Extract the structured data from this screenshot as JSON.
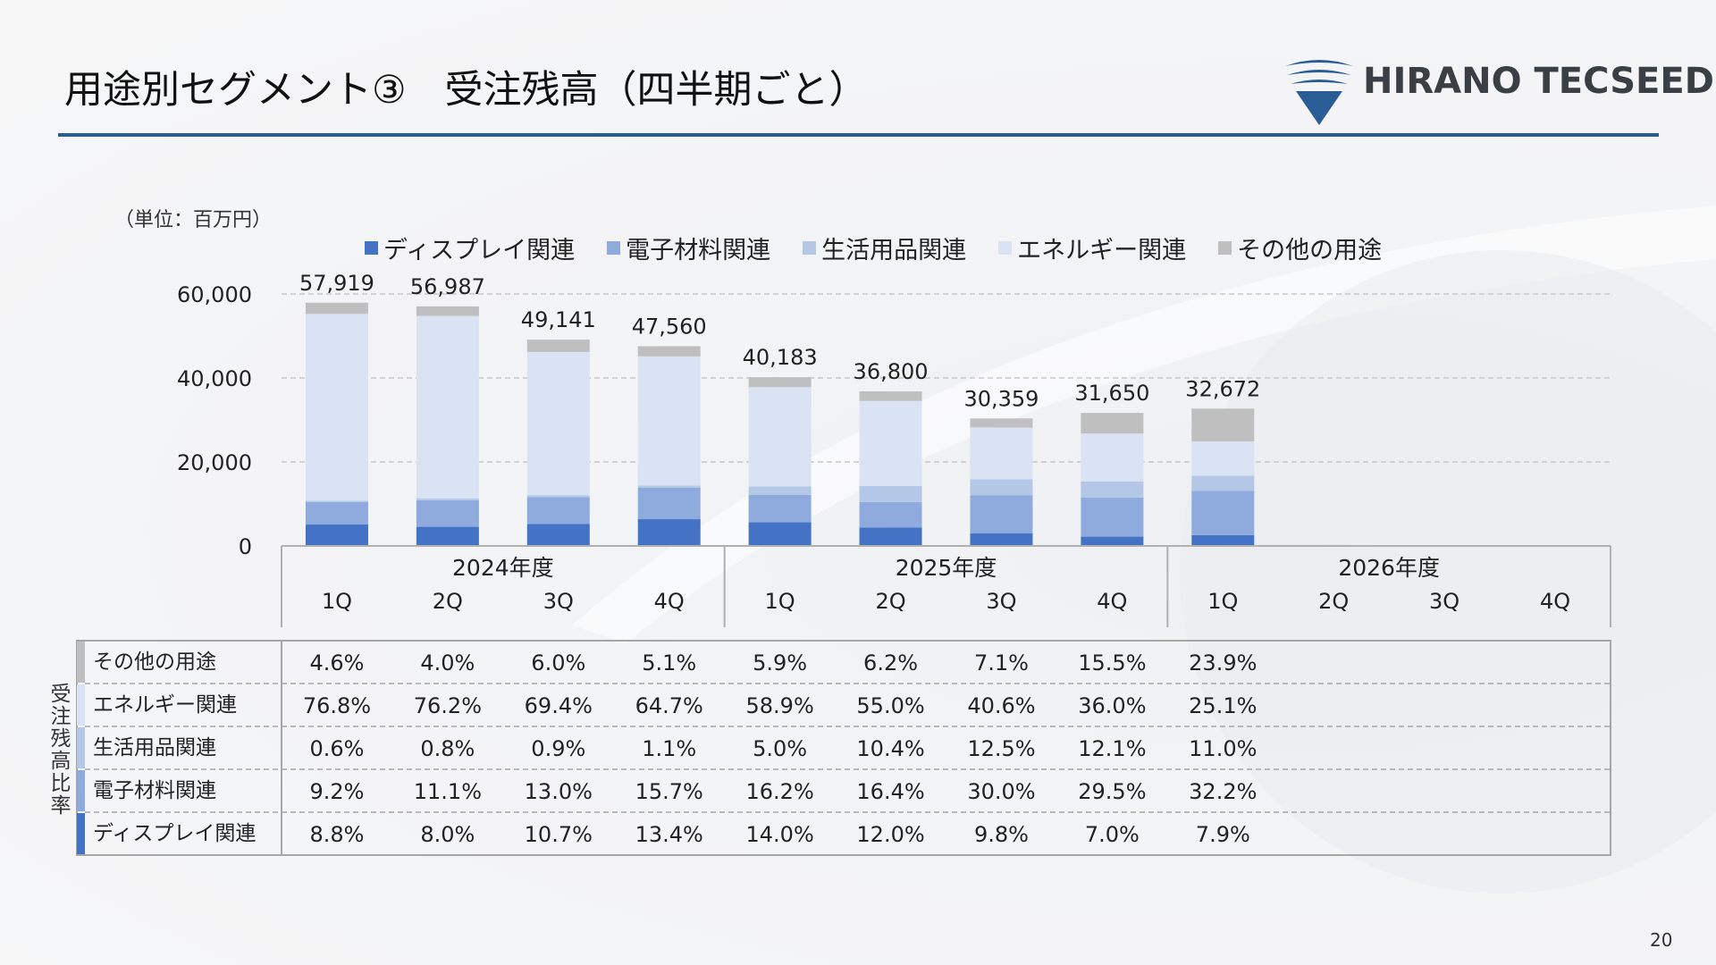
{
  "header": {
    "title": "用途別セグメント③　受注残高（四半期ごと）",
    "brand": "HIRANO TECSEED",
    "page_number": "20"
  },
  "colors": {
    "display": "#4472c4",
    "electronic": "#8faadc",
    "living": "#b4c7e7",
    "energy": "#dae3f3",
    "other": "#bfbfbf",
    "accent": "#2a5c96"
  },
  "unit_label": "（単位：百万円）",
  "table_side_label": "受注残高比率",
  "chart_data": {
    "type": "bar",
    "stacked": true,
    "ylim": [
      0,
      60000
    ],
    "yticks": [
      "0",
      "20,000",
      "40,000",
      "60,000"
    ],
    "ytick_values": [
      0,
      20000,
      40000,
      60000
    ],
    "grid": true,
    "legend_position": "top",
    "fiscal_years": [
      {
        "label": "2024年度",
        "quarters": [
          "1Q",
          "2Q",
          "3Q",
          "4Q"
        ]
      },
      {
        "label": "2025年度",
        "quarters": [
          "1Q",
          "2Q",
          "3Q",
          "4Q"
        ]
      },
      {
        "label": "2026年度",
        "quarters": [
          "1Q",
          "2Q",
          "3Q",
          "4Q"
        ]
      }
    ],
    "totals": [
      57919,
      56987,
      49141,
      47560,
      40183,
      36800,
      30359,
      31650,
      32672,
      null,
      null,
      null
    ],
    "total_labels": [
      "57,919",
      "56,987",
      "49,141",
      "47,560",
      "40,183",
      "36,800",
      "30,359",
      "31,650",
      "32,672",
      "",
      "",
      ""
    ],
    "series": [
      {
        "name": "ディスプレイ関連",
        "color_key": "display",
        "values": [
          5097,
          4559,
          5258,
          6373,
          5626,
          4416,
          2975,
          2216,
          2581,
          null,
          null,
          null
        ],
        "ratio_labels": [
          "8.8%",
          "8.0%",
          "10.7%",
          "13.4%",
          "14.0%",
          "12.0%",
          "9.8%",
          "7.0%",
          "7.9%",
          "",
          "",
          ""
        ]
      },
      {
        "name": "電子材料関連",
        "color_key": "electronic",
        "values": [
          5329,
          6326,
          6388,
          7467,
          6510,
          6035,
          9108,
          9337,
          10520,
          null,
          null,
          null
        ],
        "ratio_labels": [
          "9.2%",
          "11.1%",
          "13.0%",
          "15.7%",
          "16.2%",
          "16.4%",
          "30.0%",
          "29.5%",
          "32.2%",
          "",
          "",
          ""
        ]
      },
      {
        "name": "生活用品関連",
        "color_key": "living",
        "values": [
          348,
          456,
          442,
          523,
          2009,
          3827,
          3795,
          3830,
          3594,
          null,
          null,
          null
        ],
        "ratio_labels": [
          "0.6%",
          "0.8%",
          "0.9%",
          "1.1%",
          "5.0%",
          "10.4%",
          "12.5%",
          "12.1%",
          "11.0%",
          "",
          "",
          ""
        ]
      },
      {
        "name": "エネルギー関連",
        "color_key": "energy",
        "values": [
          44482,
          43424,
          34104,
          30771,
          23668,
          20240,
          12326,
          11394,
          8201,
          null,
          null,
          null
        ],
        "ratio_labels": [
          "76.8%",
          "76.2%",
          "69.4%",
          "64.7%",
          "58.9%",
          "55.0%",
          "40.6%",
          "36.0%",
          "25.1%",
          "",
          "",
          ""
        ]
      },
      {
        "name": "その他の用途",
        "color_key": "other",
        "values": [
          2664,
          2279,
          2948,
          2426,
          2371,
          2282,
          2155,
          4906,
          7809,
          null,
          null,
          null
        ],
        "ratio_labels": [
          "4.6%",
          "4.0%",
          "6.0%",
          "5.1%",
          "5.9%",
          "6.2%",
          "7.1%",
          "15.5%",
          "23.9%",
          "",
          "",
          ""
        ]
      }
    ],
    "table_row_order": [
      "その他の用途",
      "エネルギー関連",
      "生活用品関連",
      "電子材料関連",
      "ディスプレイ関連"
    ]
  }
}
